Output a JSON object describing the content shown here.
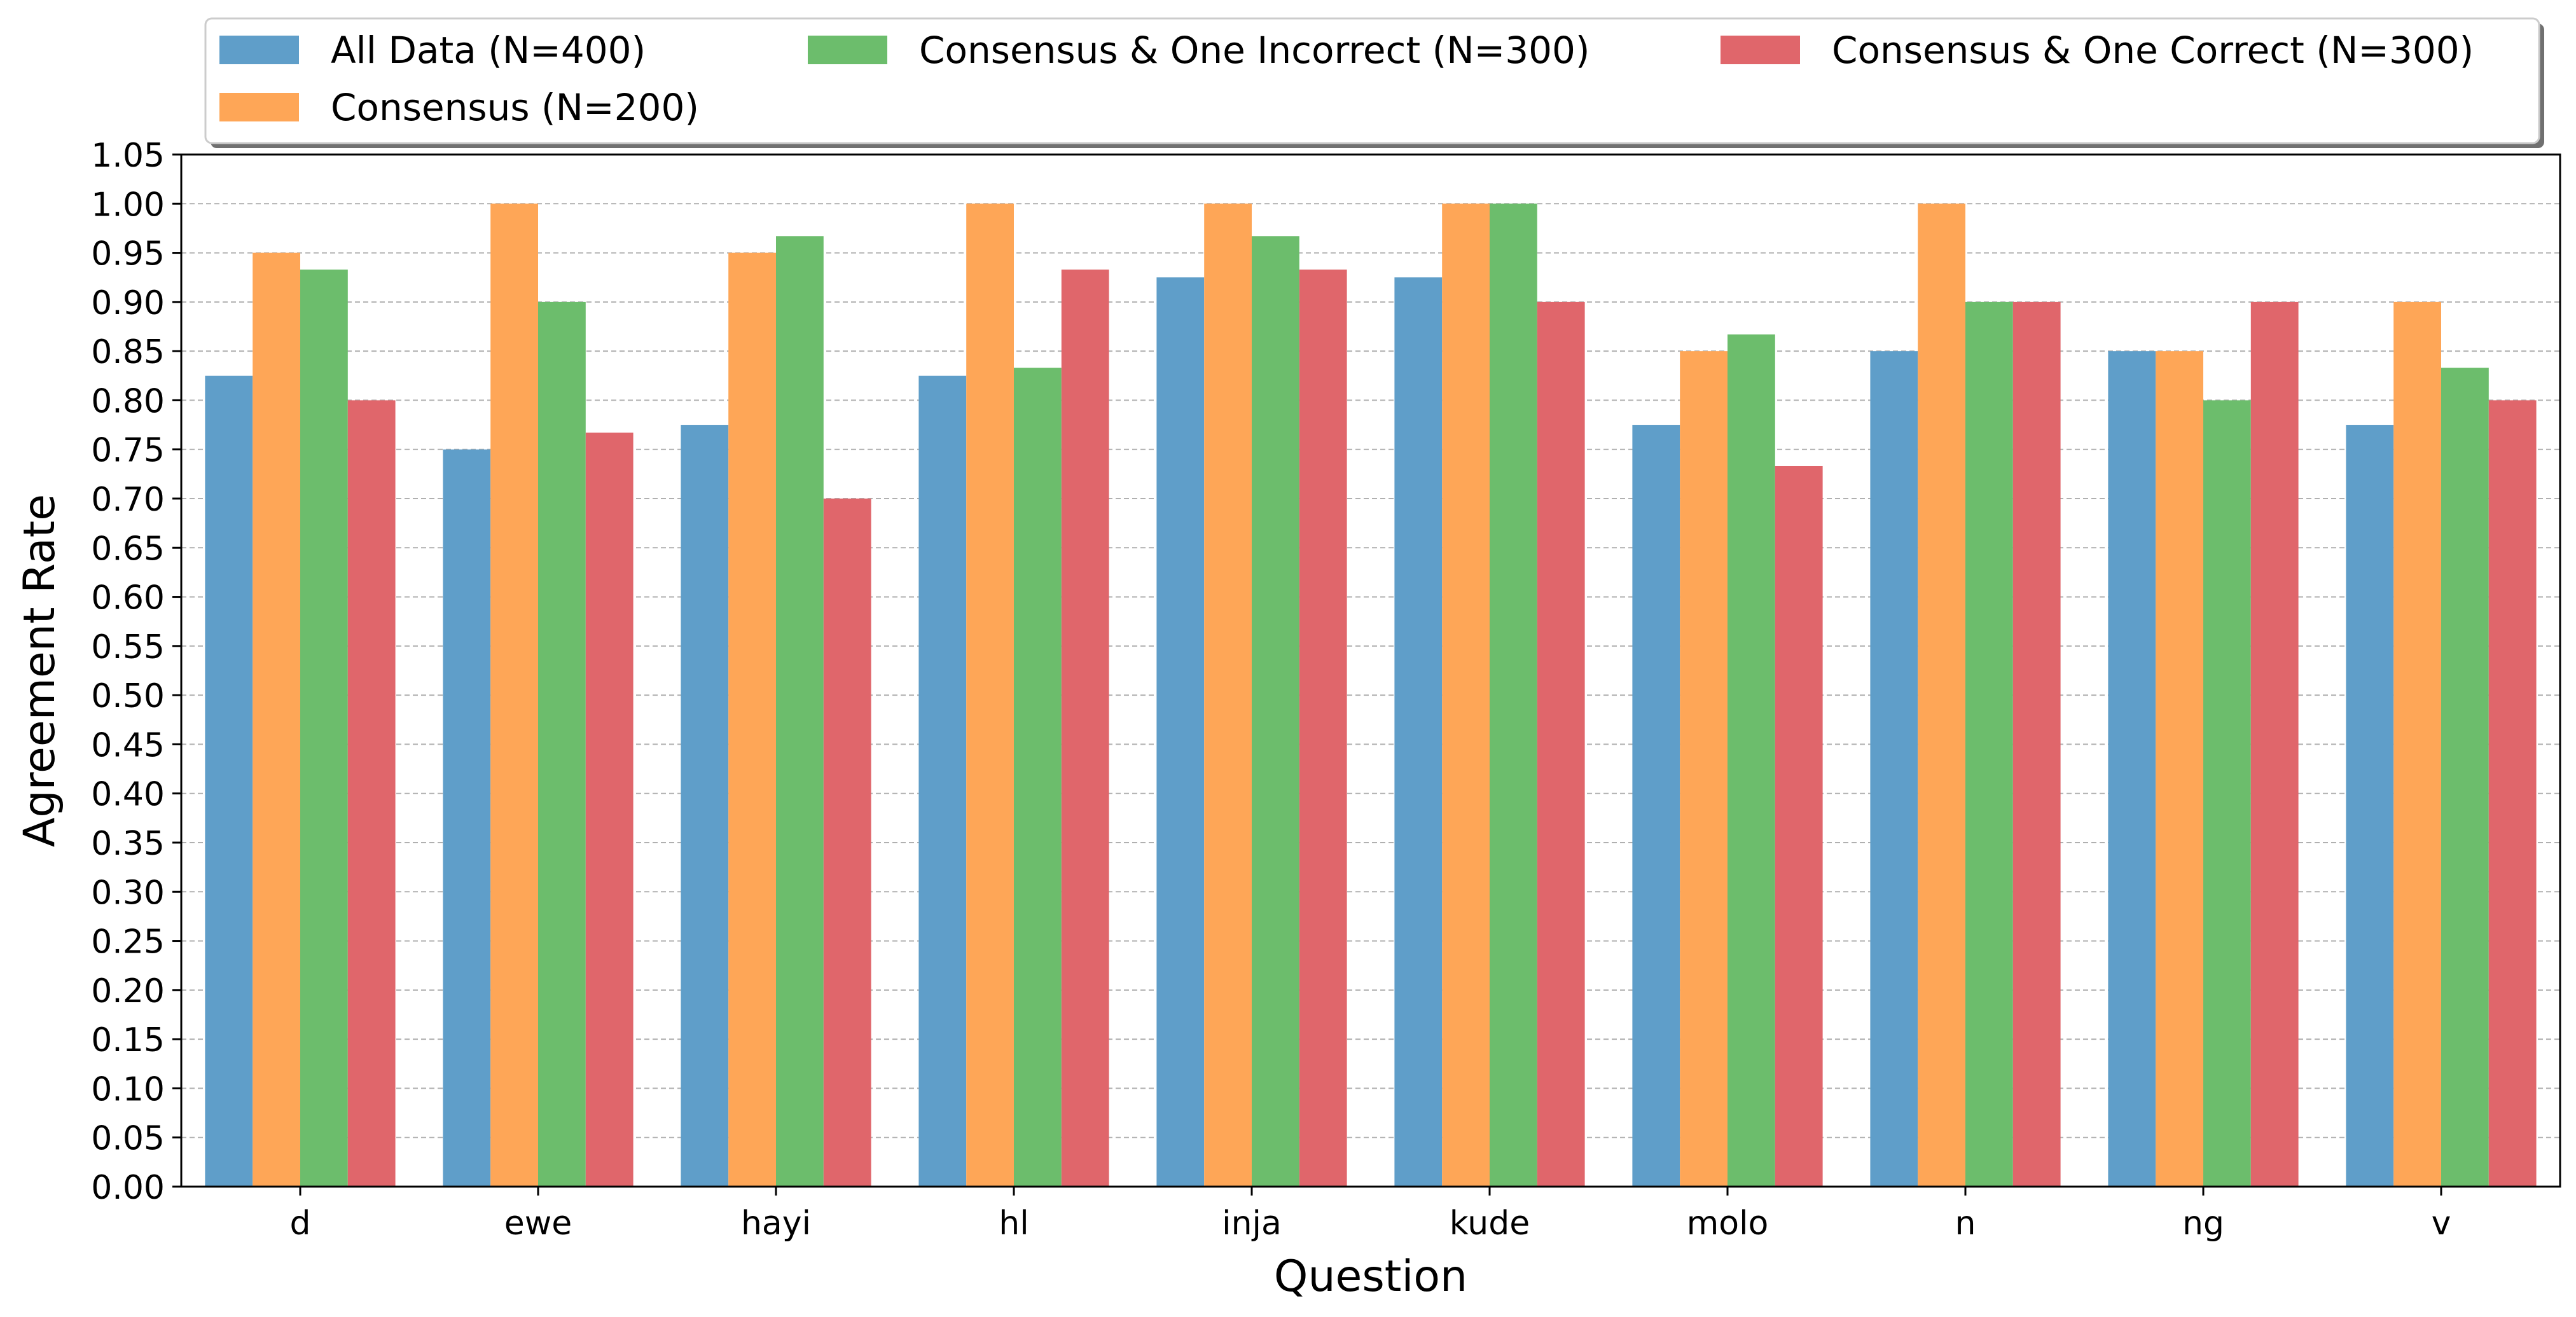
{
  "chart_data": {
    "type": "bar",
    "title": "",
    "xlabel": "Question",
    "ylabel": "Agreement Rate",
    "categories": [
      "d",
      "ewe",
      "hayi",
      "hl",
      "inja",
      "kude",
      "molo",
      "n",
      "ng",
      "v"
    ],
    "ylim": [
      0,
      1.05
    ],
    "yticks": [
      "0.00",
      "0.05",
      "0.10",
      "0.15",
      "0.20",
      "0.25",
      "0.30",
      "0.35",
      "0.40",
      "0.45",
      "0.50",
      "0.55",
      "0.60",
      "0.65",
      "0.70",
      "0.75",
      "0.80",
      "0.85",
      "0.90",
      "0.95",
      "1.00",
      "1.05"
    ],
    "grid": "horizontal dashed",
    "legend_position": "top",
    "series": [
      {
        "name": "All Data (N=400)",
        "color": "#5f9ec9",
        "values": [
          0.825,
          0.75,
          0.775,
          0.825,
          0.925,
          0.925,
          0.775,
          0.85,
          0.85,
          0.775
        ]
      },
      {
        "name": "Consensus (N=200)",
        "color": "#fea657",
        "values": [
          0.95,
          1.0,
          0.95,
          1.0,
          1.0,
          1.0,
          0.85,
          1.0,
          0.85,
          0.9
        ]
      },
      {
        "name": "Consensus & One Incorrect (N=300)",
        "color": "#6cbd6c",
        "values": [
          0.933,
          0.9,
          0.967,
          0.833,
          0.967,
          1.0,
          0.867,
          0.9,
          0.8,
          0.833
        ]
      },
      {
        "name": "Consensus & One Correct (N=300)",
        "color": "#e0666b",
        "values": [
          0.8,
          0.767,
          0.7,
          0.933,
          0.933,
          0.9,
          0.733,
          0.9,
          0.9,
          0.8
        ]
      }
    ]
  }
}
